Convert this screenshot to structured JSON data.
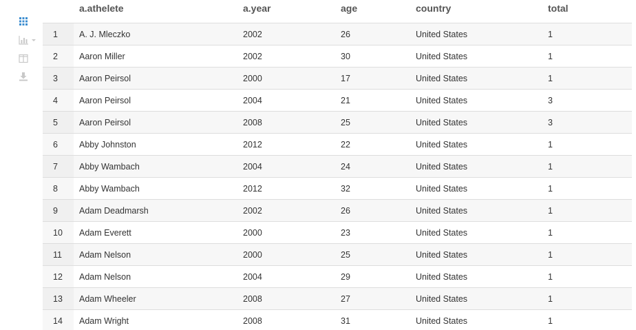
{
  "toolbar": {
    "icons": [
      "table-view-icon",
      "chart-view-icon",
      "split-view-icon",
      "download-icon"
    ],
    "active_color": "#3e8ed0",
    "inactive_color": "#c8c8c8"
  },
  "table": {
    "columns": [
      "",
      "a.athelete",
      "a.year",
      "age",
      "country",
      "total"
    ],
    "rows": [
      {
        "idx": "1",
        "athlete": "A. J. Mleczko",
        "year": "2002",
        "age": "26",
        "country": "United States",
        "total": "1"
      },
      {
        "idx": "2",
        "athlete": "Aaron Miller",
        "year": "2002",
        "age": "30",
        "country": "United States",
        "total": "1"
      },
      {
        "idx": "3",
        "athlete": "Aaron Peirsol",
        "year": "2000",
        "age": "17",
        "country": "United States",
        "total": "1"
      },
      {
        "idx": "4",
        "athlete": "Aaron Peirsol",
        "year": "2004",
        "age": "21",
        "country": "United States",
        "total": "3"
      },
      {
        "idx": "5",
        "athlete": "Aaron Peirsol",
        "year": "2008",
        "age": "25",
        "country": "United States",
        "total": "3"
      },
      {
        "idx": "6",
        "athlete": "Abby Johnston",
        "year": "2012",
        "age": "22",
        "country": "United States",
        "total": "1"
      },
      {
        "idx": "7",
        "athlete": "Abby Wambach",
        "year": "2004",
        "age": "24",
        "country": "United States",
        "total": "1"
      },
      {
        "idx": "8",
        "athlete": "Abby Wambach",
        "year": "2012",
        "age": "32",
        "country": "United States",
        "total": "1"
      },
      {
        "idx": "9",
        "athlete": "Adam Deadmarsh",
        "year": "2002",
        "age": "26",
        "country": "United States",
        "total": "1"
      },
      {
        "idx": "10",
        "athlete": "Adam Everett",
        "year": "2000",
        "age": "23",
        "country": "United States",
        "total": "1"
      },
      {
        "idx": "11",
        "athlete": "Adam Nelson",
        "year": "2000",
        "age": "25",
        "country": "United States",
        "total": "1"
      },
      {
        "idx": "12",
        "athlete": "Adam Nelson",
        "year": "2004",
        "age": "29",
        "country": "United States",
        "total": "1"
      },
      {
        "idx": "13",
        "athlete": "Adam Wheeler",
        "year": "2008",
        "age": "27",
        "country": "United States",
        "total": "1"
      },
      {
        "idx": "14",
        "athlete": "Adam Wright",
        "year": "2008",
        "age": "31",
        "country": "United States",
        "total": "1"
      }
    ]
  }
}
